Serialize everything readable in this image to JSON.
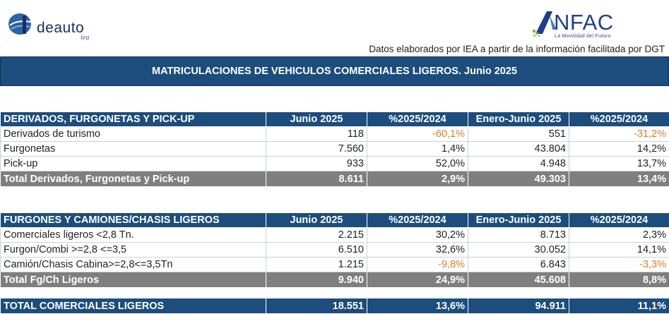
{
  "header": {
    "logo_left": {
      "name": "ideauto",
      "text": "deauto",
      "sub": "iea"
    },
    "logo_right": {
      "name": "anfac",
      "text": "NFAC",
      "tagline": "La Movilidad del Futuro"
    },
    "source_note": "Datos elaborados por IEA a partir de la información facilitada por DGT",
    "title": "MATRICULACIONES DE VEHICULOS COMERCIALES LIGEROS. Junio 2025"
  },
  "colors": {
    "header_blue": "#1c4d7c",
    "total_gray": "#7f7f7f",
    "negative_orange": "#e07a2a"
  },
  "section1": {
    "headers": [
      "DERIVADOS, FURGONETAS Y PICK-UP",
      "Junio 2025",
      "%2025/2024",
      "Enero-Junio 2025",
      "%2025/2024"
    ],
    "rows": [
      {
        "label": "Derivados de turismo",
        "jun": "118",
        "pct1": "-60,1%",
        "ytd": "551",
        "pct2": "-31,2%"
      },
      {
        "label": "Furgonetas",
        "jun": "7.560",
        "pct1": "1,4%",
        "ytd": "43.804",
        "pct2": "14,2%"
      },
      {
        "label": "Pick-up",
        "jun": "933",
        "pct1": "52,0%",
        "ytd": "4.948",
        "pct2": "13,7%"
      }
    ],
    "total": {
      "label": "Total Derivados, Furgonetas y Pick-up",
      "jun": "8.611",
      "pct1": "2,9%",
      "ytd": "49.303",
      "pct2": "13,4%"
    }
  },
  "section2": {
    "headers": [
      "FURGONES Y CAMIONES/CHASIS LIGEROS",
      "Junio 2025",
      "%2025/2024",
      "Enero-Junio 2025",
      "%2025/2024"
    ],
    "rows": [
      {
        "label": "Comerciales ligeros <2,8 Tn.",
        "jun": "2.215",
        "pct1": "30,2%",
        "ytd": "8.713",
        "pct2": "2,3%"
      },
      {
        "label": "Furgon/Combi >=2,8 <=3,5",
        "jun": "6.510",
        "pct1": "32,6%",
        "ytd": "30.052",
        "pct2": "14,1%"
      },
      {
        "label": "Camión/Chasis Cabina>=2,8<=3,5Tn",
        "jun": "1.215",
        "pct1": "-9,8%",
        "ytd": "6.843",
        "pct2": "-3,3%"
      }
    ],
    "total": {
      "label": "Total Fg/Ch Ligeros",
      "jun": "9.940",
      "pct1": "24,9%",
      "ytd": "45.608",
      "pct2": "8,8%"
    }
  },
  "grand_total": {
    "label": "TOTAL COMERCIALES LIGEROS",
    "jun": "18.551",
    "pct1": "13,6%",
    "ytd": "94.911",
    "pct2": "11,1%"
  }
}
